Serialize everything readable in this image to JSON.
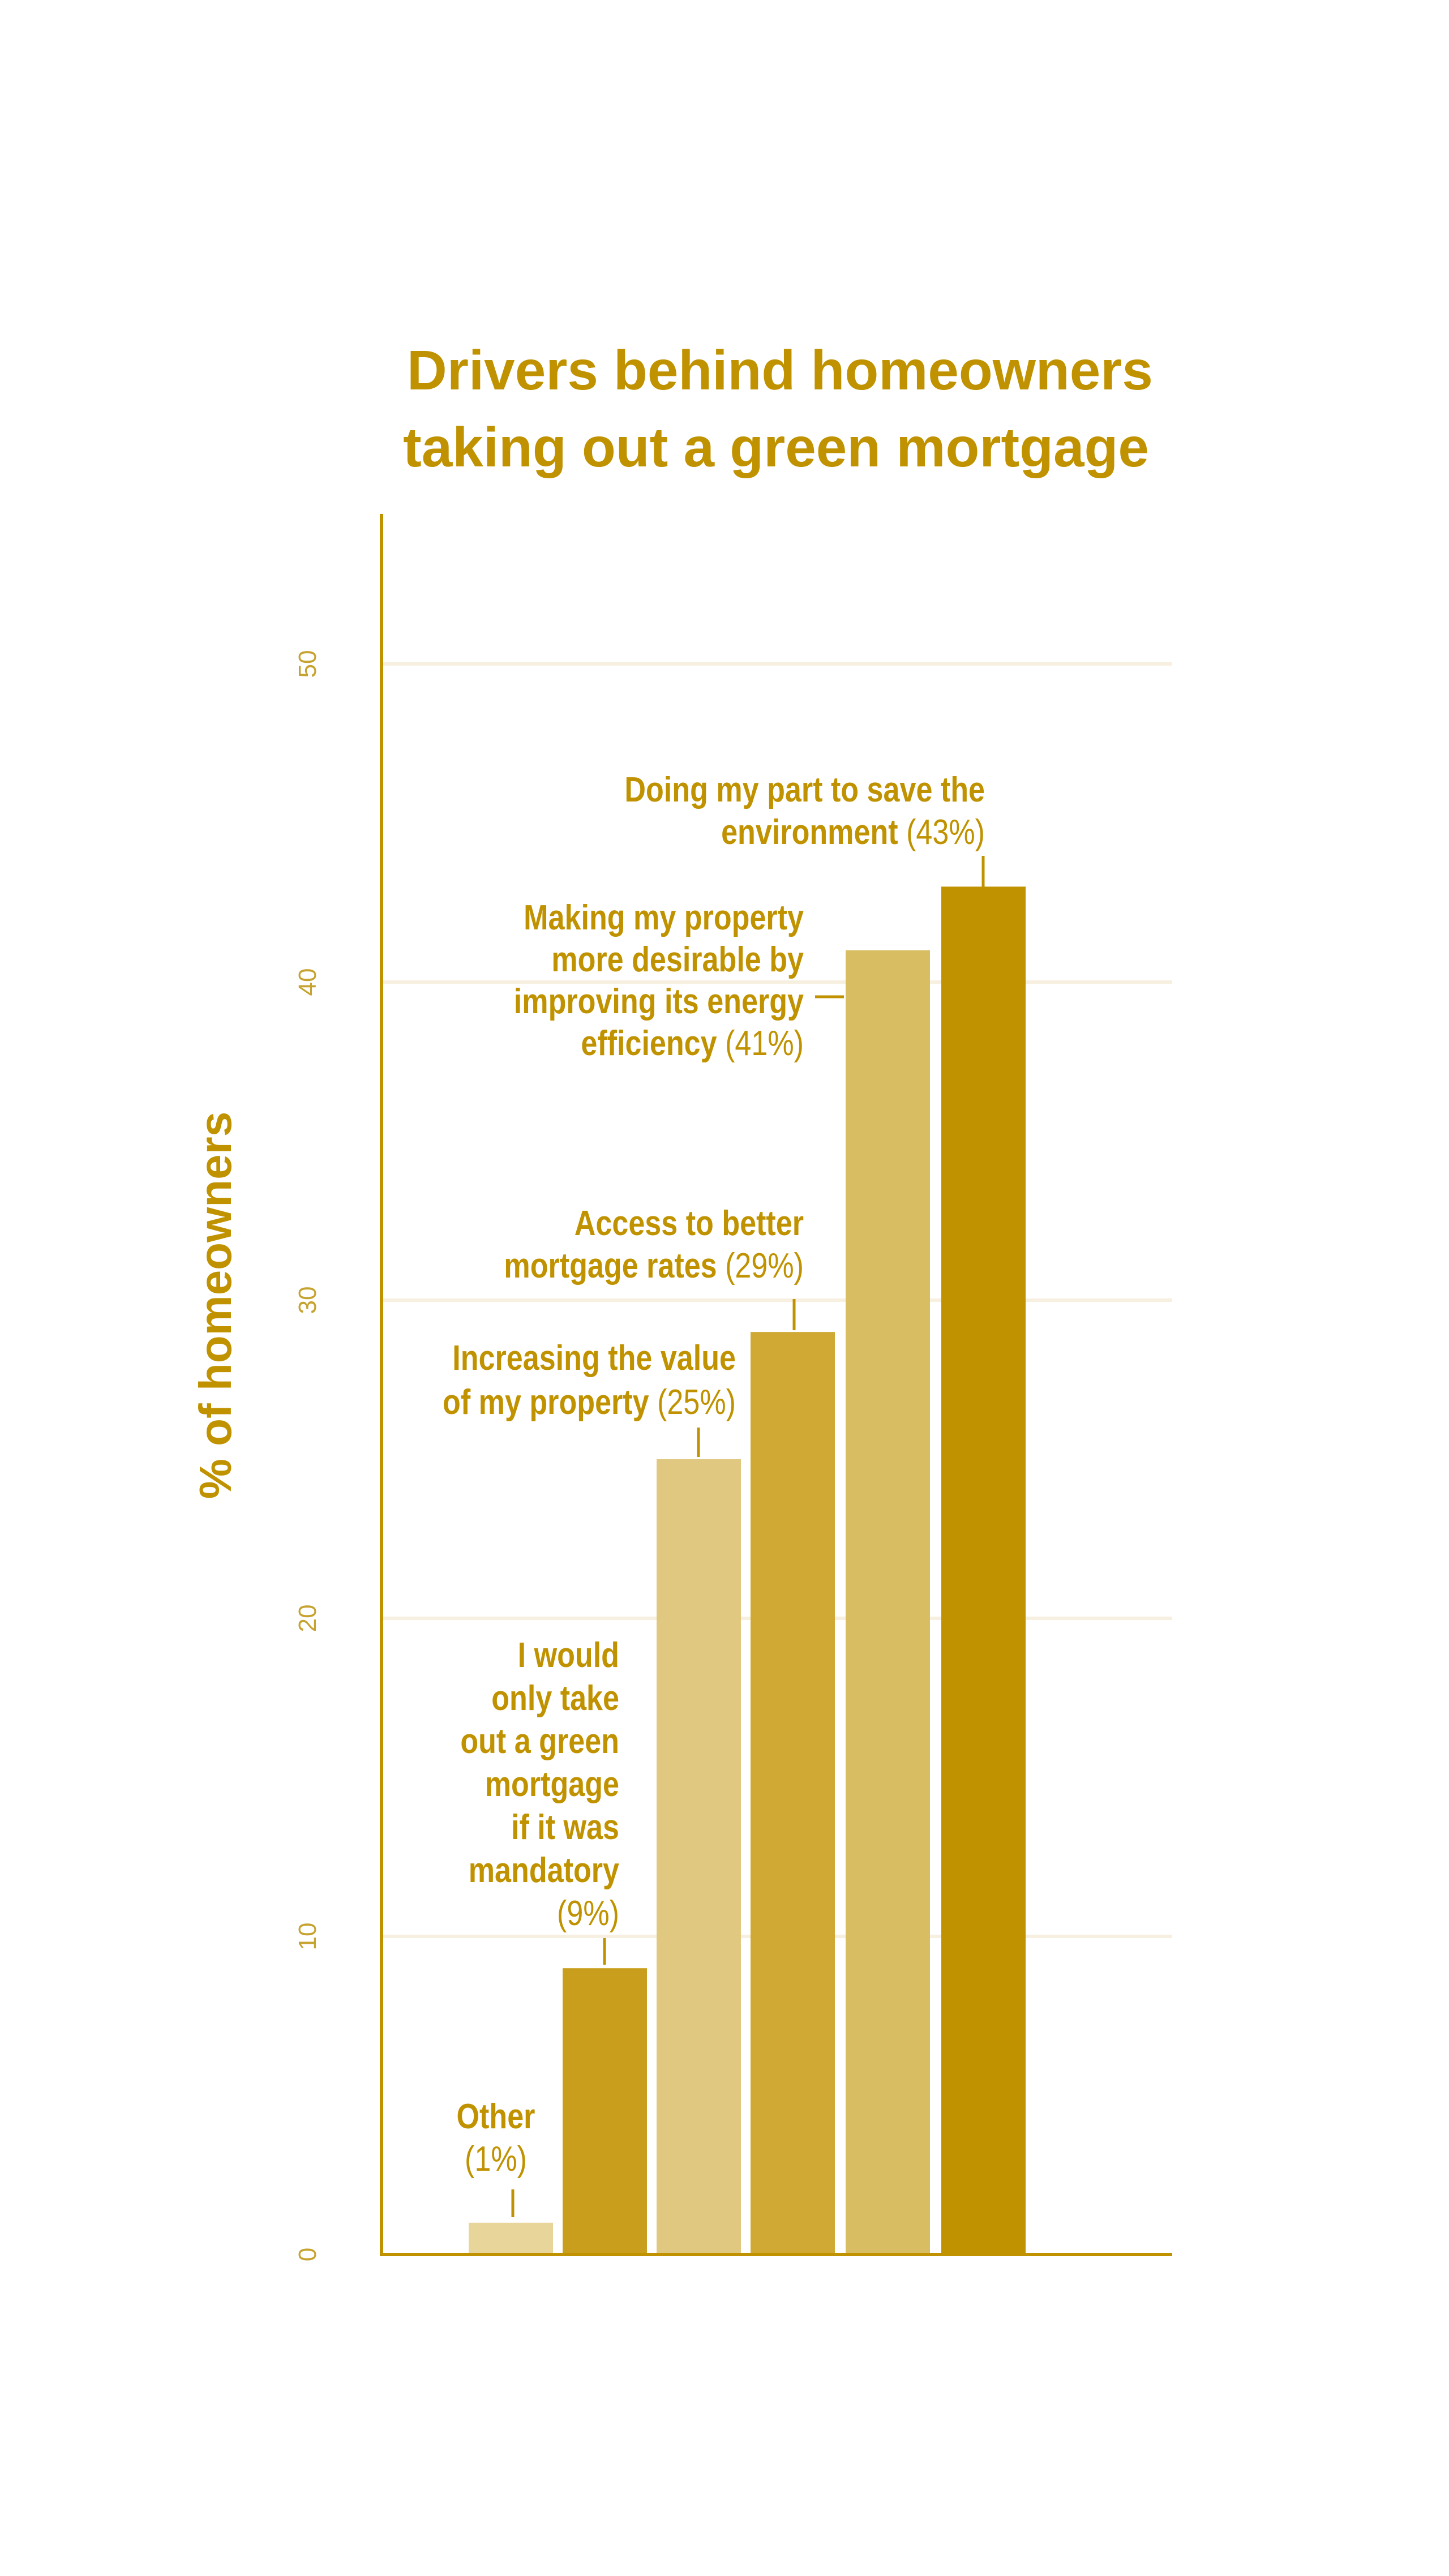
{
  "chart_data": {
    "type": "bar",
    "title": [
      "Drivers behind homeowners",
      "taking out a green mortgage"
    ],
    "xlabel": "",
    "ylabel": "% of homeowners",
    "ylim": [
      0,
      55
    ],
    "yticks": [
      0,
      10,
      20,
      30,
      40,
      50
    ],
    "grid": true,
    "categories": [
      "Other",
      "I would only take out a green mortgage if it was mandatory",
      "Increasing the value of my property",
      "Access to better mortgage rates",
      "Making my property more desirable by improving its energy efficiency",
      "Doing my part to save the environment"
    ],
    "values": [
      1,
      9,
      25,
      29,
      41,
      43
    ],
    "colors": [
      "#e8d59a",
      "#c99e1c",
      "#e0c880",
      "#cfa933",
      "#d9bd62",
      "#c09200"
    ],
    "annotations": [
      {
        "lines": [
          "Other"
        ],
        "value": "(1%)",
        "value_own_line": true
      },
      {
        "lines": [
          "I would",
          "only take",
          "out a green",
          "mortgage",
          "if it was",
          "mandatory"
        ],
        "value": "(9%)",
        "value_own_line": true
      },
      {
        "lines": [
          "Increasing the value",
          "of my property"
        ],
        "value": "(25%)",
        "value_own_line": false
      },
      {
        "lines": [
          "Access to better",
          "mortgage rates"
        ],
        "value": "(29%)",
        "value_own_line": false
      },
      {
        "lines": [
          "Making my property",
          "more desirable by",
          "improving its energy",
          "efficiency"
        ],
        "value": "(41%)",
        "value_own_line": false
      },
      {
        "lines": [
          "Doing my part to save the",
          "environment"
        ],
        "value": "(43%)",
        "value_own_line": false
      }
    ],
    "accent_color": "#c09200",
    "grid_color": "#f7f0e0"
  }
}
